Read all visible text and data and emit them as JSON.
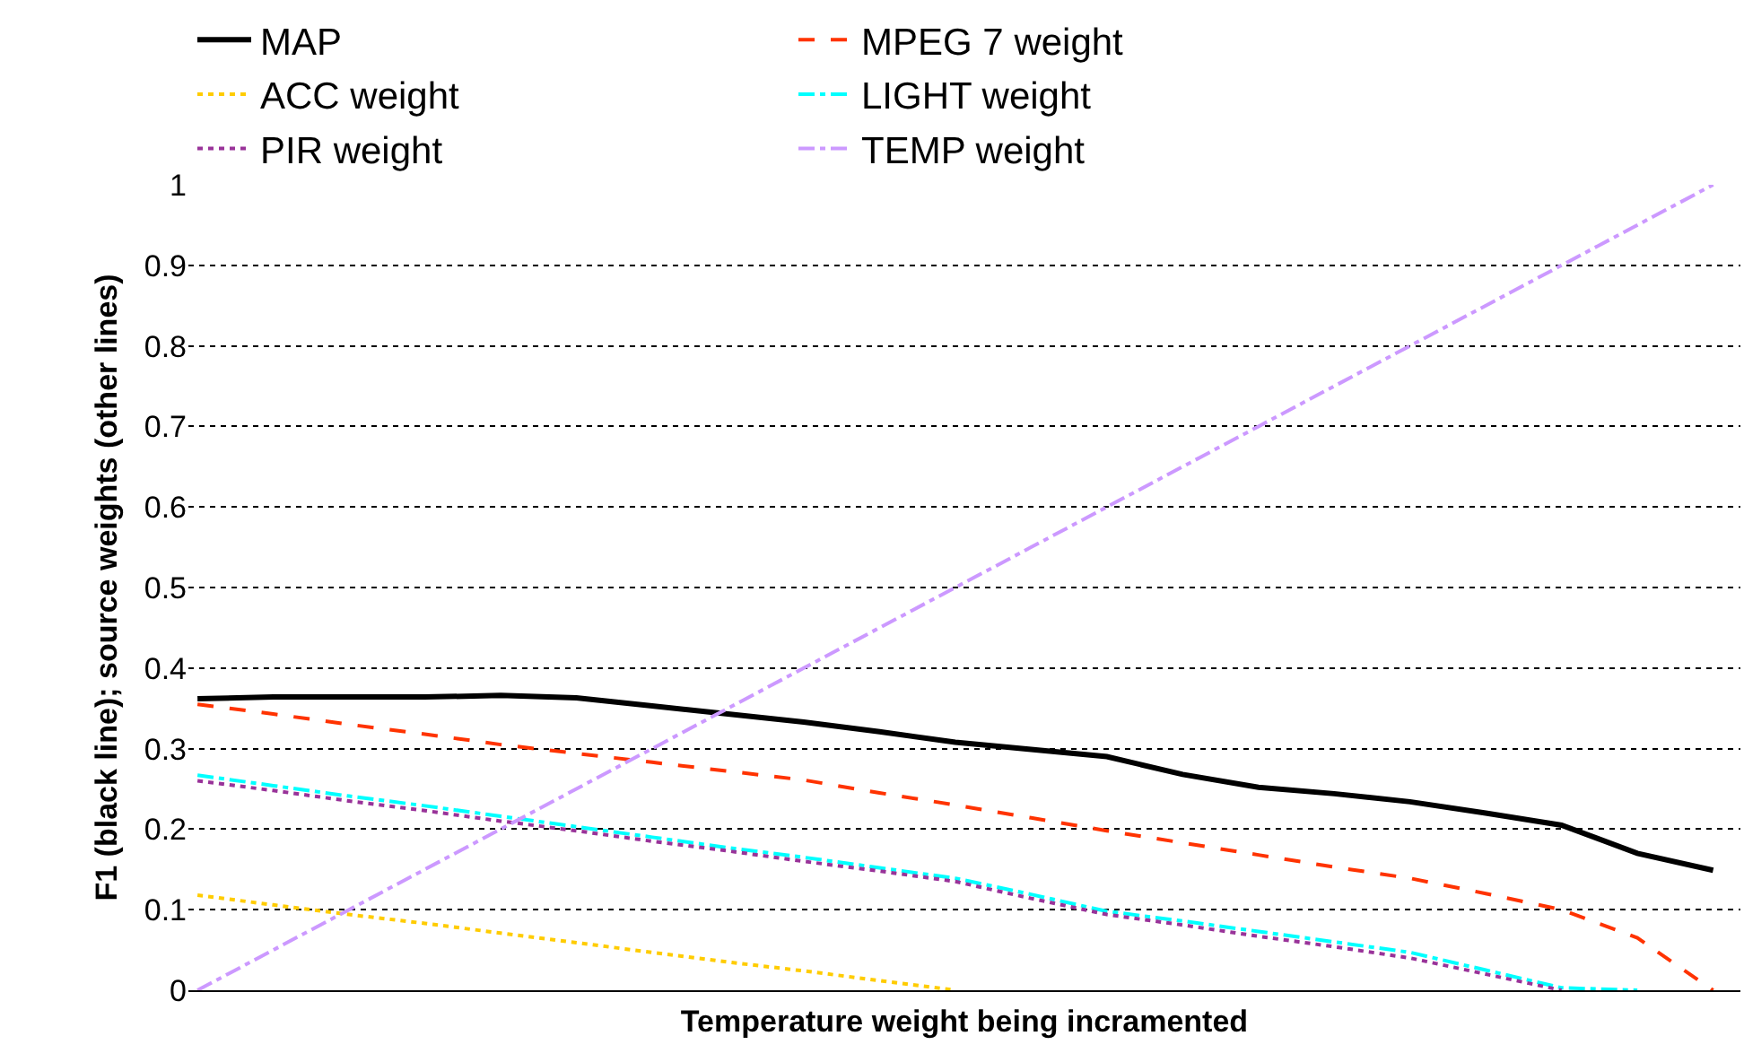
{
  "chart_data": {
    "type": "line",
    "xlabel": "Temperature weight being incramented",
    "ylabel": "F1 (black line); source weights (other lines)",
    "categories": [
      null,
      null,
      null,
      null,
      null,
      null,
      null,
      null,
      null,
      null,
      null,
      null,
      null,
      null,
      null,
      null,
      null,
      null,
      null,
      null,
      null
    ],
    "ylim": [
      0,
      1
    ],
    "yticks": [
      0,
      0.1,
      0.2,
      0.3,
      0.4,
      0.5,
      0.6,
      0.7,
      0.8,
      0.9,
      1
    ],
    "grid": "y",
    "legend": "top",
    "marker": "none",
    "series": [
      {
        "name": "MAP",
        "color": "#000000",
        "line_style": "solid",
        "values": [
          0.362,
          0.364,
          0.364,
          0.364,
          0.366,
          0.363,
          0.353,
          0.343,
          0.333,
          0.321,
          0.308,
          0.299,
          0.29,
          0.268,
          0.252,
          0.244,
          0.234,
          0.22,
          0.205,
          0.17,
          0.149
        ]
      },
      {
        "name": "MPEG 7 weight",
        "color": "#ff3300",
        "line_style": "dashed",
        "values": [
          0.355,
          0.343,
          0.33,
          0.318,
          0.305,
          0.294,
          0.283,
          0.272,
          0.261,
          0.245,
          0.23,
          0.214,
          0.198,
          0.183,
          0.168,
          0.153,
          0.139,
          0.12,
          0.1,
          0.065,
          0
        ]
      },
      {
        "name": "ACC weight",
        "color": "#ffcc00",
        "line_style": "dotted",
        "values": [
          0.118,
          0.106,
          0.094,
          0.083,
          0.071,
          0.059,
          0.047,
          0.035,
          0.024,
          0.012,
          0,
          null,
          null,
          null,
          null,
          null,
          null,
          null,
          null,
          null,
          null
        ]
      },
      {
        "name": "LIGHT weight",
        "color": "#00ffff",
        "line_style": "dashdot",
        "values": [
          0.267,
          0.254,
          0.241,
          0.229,
          0.216,
          0.203,
          0.19,
          0.177,
          0.165,
          0.152,
          0.139,
          0.119,
          0.098,
          0.086,
          0.073,
          0.06,
          0.047,
          0.025,
          0.003,
          0,
          null
        ]
      },
      {
        "name": "PIR weight",
        "color": "#993399",
        "line_style": "dotted",
        "values": [
          0.26,
          0.248,
          0.235,
          0.223,
          0.21,
          0.198,
          0.185,
          0.173,
          0.16,
          0.148,
          0.135,
          0.114,
          0.094,
          0.081,
          0.067,
          0.054,
          0.04,
          0.02,
          0,
          null,
          null
        ]
      },
      {
        "name": "TEMP weight",
        "color": "#cc99ff",
        "line_style": "dashdot",
        "values": [
          0,
          0.05,
          0.1,
          0.15,
          0.2,
          0.25,
          0.3,
          0.35,
          0.4,
          0.45,
          0.5,
          0.55,
          0.6,
          0.65,
          0.7,
          0.75,
          0.8,
          0.85,
          0.9,
          0.95,
          1
        ]
      }
    ]
  }
}
